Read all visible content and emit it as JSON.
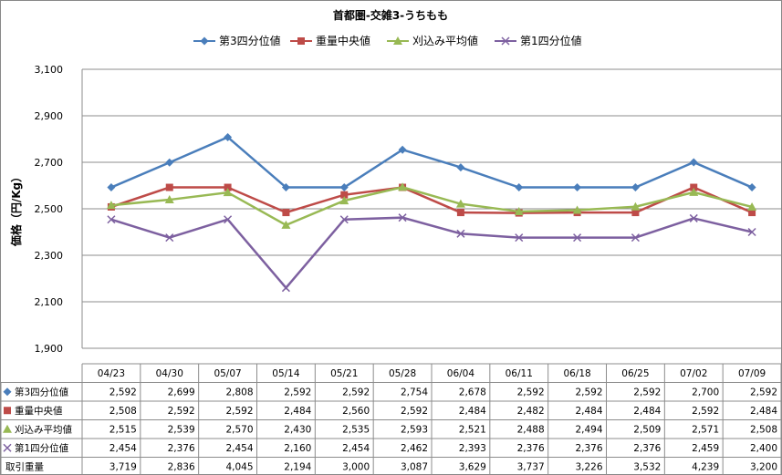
{
  "chart_data": {
    "type": "line",
    "title": "首都圏-交雑3-うちもも",
    "ylabel": "価格（円/Kg）",
    "xlabel": "",
    "ylim": [
      1900,
      3100
    ],
    "yticks": [
      "1,900",
      "2,100",
      "2,300",
      "2,500",
      "2,700",
      "2,900",
      "3,100"
    ],
    "ytick_values": [
      1900,
      2100,
      2300,
      2500,
      2700,
      2900,
      3100
    ],
    "categories": [
      "04/23",
      "04/30",
      "05/07",
      "05/14",
      "05/21",
      "05/28",
      "06/04",
      "06/11",
      "06/18",
      "06/25",
      "07/02",
      "07/09"
    ],
    "legend_position": "top",
    "grid": true,
    "series": [
      {
        "name": "第3四分位値",
        "color": "#4A7EBB",
        "marker": "diamond",
        "values": [
          2592,
          2699,
          2808,
          2592,
          2592,
          2754,
          2678,
          2592,
          2592,
          2592,
          2700,
          2592
        ]
      },
      {
        "name": "重量中央値",
        "color": "#BE4B48",
        "marker": "square",
        "values": [
          2508,
          2592,
          2592,
          2484,
          2560,
          2592,
          2484,
          2482,
          2484,
          2484,
          2592,
          2484
        ]
      },
      {
        "name": "刈込み平均値",
        "color": "#98B954",
        "marker": "triangle",
        "values": [
          2515,
          2539,
          2570,
          2430,
          2535,
          2593,
          2521,
          2488,
          2494,
          2509,
          2571,
          2508
        ]
      },
      {
        "name": "第1四分位値",
        "color": "#7D60A0",
        "marker": "x",
        "values": [
          2454,
          2376,
          2454,
          2160,
          2454,
          2462,
          2393,
          2376,
          2376,
          2376,
          2459,
          2400
        ]
      }
    ],
    "table": {
      "series_rows": [
        [
          "2,592",
          "2,699",
          "2,808",
          "2,592",
          "2,592",
          "2,754",
          "2,678",
          "2,592",
          "2,592",
          "2,592",
          "2,700",
          "2,592"
        ],
        [
          "2,508",
          "2,592",
          "2,592",
          "2,484",
          "2,560",
          "2,592",
          "2,484",
          "2,482",
          "2,484",
          "2,484",
          "2,592",
          "2,484"
        ],
        [
          "2,515",
          "2,539",
          "2,570",
          "2,430",
          "2,535",
          "2,593",
          "2,521",
          "2,488",
          "2,494",
          "2,509",
          "2,571",
          "2,508"
        ],
        [
          "2,454",
          "2,376",
          "2,454",
          "2,160",
          "2,454",
          "2,462",
          "2,393",
          "2,376",
          "2,376",
          "2,376",
          "2,459",
          "2,400"
        ]
      ],
      "extra_row": {
        "label": "取引重量",
        "values": [
          "3,719",
          "2,836",
          "4,045",
          "2,194",
          "3,000",
          "3,087",
          "3,629",
          "3,737",
          "3,226",
          "3,532",
          "4,239",
          "3,200"
        ]
      }
    }
  }
}
